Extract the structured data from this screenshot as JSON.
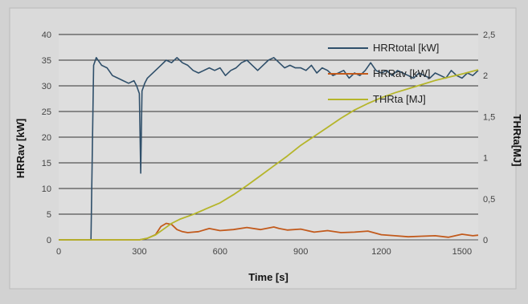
{
  "chart_data": {
    "type": "line",
    "xlabel": "Time [s]",
    "ylabel_left": "HRRav [kW]",
    "ylabel_right": "THRta[MJ]",
    "xlim": [
      0,
      1560
    ],
    "ylim_left": [
      0,
      40
    ],
    "ylim_right": [
      0,
      2.5
    ],
    "xticks": [
      "0",
      "300",
      "600",
      "900",
      "1200",
      "1500"
    ],
    "yticks_left": [
      "0",
      "5",
      "10",
      "15",
      "20",
      "25",
      "30",
      "35",
      "40"
    ],
    "yticks_right": [
      "0",
      "0,5",
      "1",
      "1,5",
      "2",
      "2,5"
    ],
    "grid": "horizontal",
    "legend_position": "top-right",
    "series": [
      {
        "name": "HRRtotal [kW]",
        "axis": "left",
        "color": "#2f4f6a",
        "x": [
          0,
          100,
          120,
          130,
          140,
          160,
          180,
          200,
          220,
          240,
          260,
          280,
          290,
          300,
          305,
          310,
          320,
          330,
          340,
          360,
          380,
          400,
          420,
          440,
          460,
          480,
          500,
          520,
          540,
          560,
          580,
          600,
          620,
          640,
          660,
          680,
          700,
          720,
          740,
          760,
          780,
          800,
          820,
          840,
          860,
          880,
          900,
          920,
          940,
          960,
          980,
          1000,
          1020,
          1040,
          1060,
          1080,
          1100,
          1120,
          1140,
          1160,
          1180,
          1200,
          1220,
          1240,
          1260,
          1280,
          1300,
          1320,
          1340,
          1360,
          1380,
          1400,
          1420,
          1440,
          1460,
          1480,
          1500,
          1520,
          1540,
          1560
        ],
        "values": [
          0,
          0,
          0,
          34,
          35.5,
          34,
          33.5,
          32,
          31.5,
          31,
          30.5,
          31,
          30,
          28.5,
          13,
          29,
          30.5,
          31.5,
          32,
          33,
          34,
          35,
          34.5,
          35.5,
          34.5,
          34,
          33,
          32.5,
          33,
          33.5,
          33,
          33.5,
          32,
          33,
          33.5,
          34.5,
          35,
          34,
          33,
          34,
          35,
          35.5,
          34.5,
          33.5,
          34,
          33.5,
          33.5,
          33,
          34,
          32.5,
          33.5,
          33,
          32,
          32.5,
          33,
          31.5,
          32.5,
          32,
          33,
          34.5,
          33,
          32.5,
          33,
          32,
          33,
          32.5,
          32,
          31.5,
          32.5,
          32,
          31.5,
          32.5,
          32,
          31.5,
          33,
          32,
          31.5,
          32.5,
          32,
          33
        ]
      },
      {
        "name": "HRRav [kW]",
        "axis": "left",
        "color": "#c25a1c",
        "x": [
          0,
          100,
          120,
          140,
          200,
          260,
          300,
          330,
          360,
          380,
          400,
          420,
          440,
          460,
          480,
          500,
          520,
          540,
          560,
          600,
          650,
          700,
          750,
          800,
          820,
          850,
          900,
          950,
          1000,
          1050,
          1100,
          1150,
          1200,
          1250,
          1300,
          1350,
          1400,
          1450,
          1500,
          1540,
          1560
        ],
        "values": [
          0,
          0,
          0,
          0,
          0,
          0,
          0,
          0.3,
          1.0,
          2.6,
          3.2,
          3.0,
          2.0,
          1.6,
          1.4,
          1.5,
          1.6,
          1.9,
          2.2,
          1.8,
          2.0,
          2.4,
          2.0,
          2.5,
          2.2,
          1.9,
          2.1,
          1.5,
          1.8,
          1.4,
          1.5,
          1.7,
          1.0,
          0.8,
          0.6,
          0.7,
          0.8,
          0.5,
          1.1,
          0.8,
          0.9
        ]
      },
      {
        "name": "THRta [MJ]",
        "axis": "right",
        "color": "#b5b52a",
        "x": [
          0,
          100,
          300,
          330,
          360,
          390,
          420,
          450,
          500,
          550,
          600,
          650,
          700,
          750,
          800,
          850,
          900,
          950,
          1000,
          1050,
          1100,
          1150,
          1200,
          1250,
          1300,
          1350,
          1400,
          1450,
          1500,
          1560
        ],
        "values": [
          0,
          0,
          0,
          0.02,
          0.06,
          0.13,
          0.2,
          0.25,
          0.31,
          0.38,
          0.45,
          0.55,
          0.66,
          0.78,
          0.9,
          1.02,
          1.15,
          1.26,
          1.37,
          1.48,
          1.58,
          1.66,
          1.73,
          1.79,
          1.84,
          1.89,
          1.94,
          1.98,
          2.02,
          2.07
        ]
      }
    ]
  }
}
